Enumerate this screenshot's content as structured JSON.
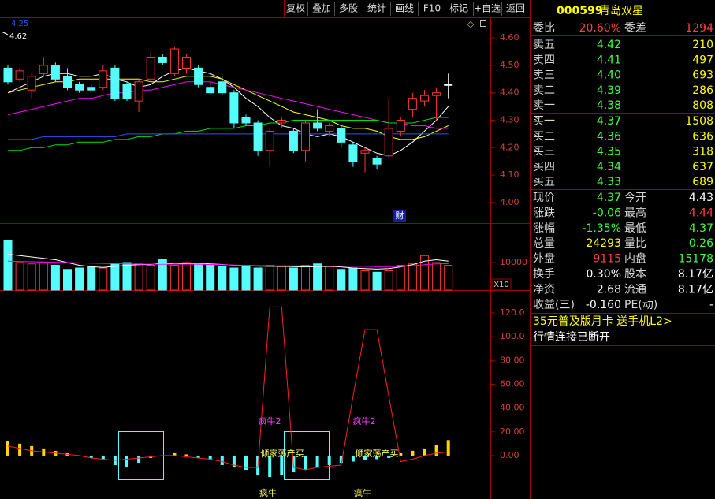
{
  "toolbar": [
    "复权",
    "叠加",
    "多股",
    "统计",
    "画线",
    "F10",
    "标记",
    "+自选",
    "返回"
  ],
  "quote": {
    "code": "000599",
    "name": "青岛双星",
    "ratio": [
      "委比",
      "20.60%",
      "委差",
      "1294"
    ],
    "asks": [
      [
        "卖五",
        "4.42",
        "210"
      ],
      [
        "卖四",
        "4.41",
        "497"
      ],
      [
        "卖三",
        "4.40",
        "693"
      ],
      [
        "卖二",
        "4.39",
        "286"
      ],
      [
        "卖一",
        "4.38",
        "808"
      ]
    ],
    "bids": [
      [
        "买一",
        "4.37",
        "1508"
      ],
      [
        "买二",
        "4.36",
        "636"
      ],
      [
        "买三",
        "4.35",
        "318"
      ],
      [
        "买四",
        "4.34",
        "637"
      ],
      [
        "买五",
        "4.33",
        "689"
      ]
    ],
    "stats": [
      [
        "现价",
        "4.37",
        "今开",
        "4.43"
      ],
      [
        "涨跌",
        "-0.06",
        "最高",
        "4.44"
      ],
      [
        "涨幅",
        "-1.35%",
        "最低",
        "4.37"
      ],
      [
        "总量",
        "24293",
        "量比",
        "0.26"
      ],
      [
        "外盘",
        "9115",
        "内盘",
        "15178"
      ],
      [
        "换手",
        "0.30%",
        "股本",
        "8.17亿"
      ],
      [
        "净资",
        "2.68",
        "流通",
        "8.17亿"
      ],
      [
        "收益(三)",
        "-0.160",
        "PE(动)",
        "-"
      ]
    ],
    "promo": "35元普及版月卡 送手机L2>",
    "status": "行情连接已断开"
  },
  "chart_data": [
    {
      "type": "candlestick",
      "open": [
        4.49,
        4.45,
        4.41,
        4.47,
        4.5,
        4.46,
        4.43,
        4.42,
        4.42,
        4.49,
        4.43,
        4.37,
        4.45,
        4.53,
        4.47,
        4.49,
        4.49,
        4.42,
        4.44,
        4.4,
        4.31,
        4.29,
        4.19,
        4.29,
        4.26,
        4.19,
        4.29,
        4.26,
        4.27,
        4.21,
        4.18,
        4.16,
        4.17,
        4.26,
        4.34,
        4.37,
        4.39,
        4.43
      ],
      "high": [
        4.5,
        4.49,
        4.47,
        4.53,
        4.51,
        4.49,
        4.44,
        4.43,
        4.5,
        4.5,
        4.44,
        4.45,
        4.55,
        4.54,
        4.57,
        4.54,
        4.5,
        4.44,
        4.46,
        4.41,
        4.32,
        4.3,
        4.27,
        4.31,
        4.27,
        4.3,
        4.34,
        4.29,
        4.28,
        4.22,
        4.2,
        4.17,
        4.38,
        4.31,
        4.4,
        4.41,
        4.42,
        4.47
      ],
      "low": [
        4.43,
        4.44,
        4.38,
        4.46,
        4.44,
        4.41,
        4.4,
        4.41,
        4.41,
        4.37,
        4.37,
        4.33,
        4.44,
        4.5,
        4.46,
        4.47,
        4.42,
        4.39,
        4.39,
        4.27,
        4.28,
        4.17,
        4.13,
        4.27,
        4.18,
        4.15,
        4.26,
        4.24,
        4.2,
        4.13,
        4.11,
        4.12,
        4.16,
        4.24,
        4.31,
        4.35,
        4.3,
        4.38
      ],
      "close": [
        4.44,
        4.48,
        4.46,
        4.5,
        4.45,
        4.42,
        4.41,
        4.41,
        4.48,
        4.38,
        4.38,
        4.44,
        4.53,
        4.51,
        4.56,
        4.53,
        4.43,
        4.4,
        4.4,
        4.29,
        4.29,
        4.19,
        4.26,
        4.3,
        4.19,
        4.29,
        4.27,
        4.28,
        4.22,
        4.15,
        4.19,
        4.14,
        4.27,
        4.3,
        4.38,
        4.39,
        4.4,
        4.43
      ],
      "up_color": "#ff3232",
      "down_color": "#54fcfc",
      "flat_color": "#ffffff",
      "lines": [
        {
          "color": "#ffffff",
          "values": [
            4.4,
            4.42,
            4.44,
            4.46,
            4.47,
            4.47,
            4.46,
            4.46,
            4.47,
            4.45,
            4.44,
            4.42,
            4.43,
            4.46,
            4.48,
            4.49,
            4.48,
            4.47,
            4.45,
            4.42,
            4.38,
            4.35,
            4.31,
            4.28,
            4.27,
            4.25,
            4.24,
            4.25,
            4.24,
            4.22,
            4.2,
            4.18,
            4.17,
            4.19,
            4.22,
            4.26,
            4.3,
            4.35
          ]
        },
        {
          "color": "#ffff00",
          "values": [
            4.4,
            4.41,
            4.42,
            4.43,
            4.44,
            4.44,
            4.45,
            4.45,
            4.45,
            4.45,
            4.45,
            4.45,
            4.44,
            4.44,
            4.45,
            4.46,
            4.46,
            4.46,
            4.45,
            4.43,
            4.41,
            4.39,
            4.37,
            4.35,
            4.33,
            4.32,
            4.31,
            4.3,
            4.28,
            4.27,
            4.27,
            4.26,
            4.24,
            4.23,
            4.23,
            4.24,
            4.26,
            4.28
          ]
        },
        {
          "color": "#ff00ff",
          "values": [
            4.32,
            4.33,
            4.34,
            4.35,
            4.36,
            4.37,
            4.38,
            4.38,
            4.39,
            4.4,
            4.4,
            4.41,
            4.41,
            4.42,
            4.43,
            4.44,
            4.44,
            4.44,
            4.43,
            4.42,
            4.41,
            4.4,
            4.39,
            4.38,
            4.37,
            4.36,
            4.35,
            4.34,
            4.33,
            4.32,
            4.31,
            4.3,
            4.29,
            4.29,
            4.28,
            4.28,
            4.27,
            4.27
          ]
        },
        {
          "color": "#00e000",
          "values": [
            4.19,
            4.19,
            4.2,
            4.2,
            4.21,
            4.21,
            4.22,
            4.22,
            4.22,
            4.23,
            4.23,
            4.24,
            4.24,
            4.25,
            4.25,
            4.26,
            4.26,
            4.27,
            4.27,
            4.27,
            4.28,
            4.28,
            4.29,
            4.29,
            4.3,
            4.3,
            4.3,
            4.3,
            4.3,
            4.3,
            4.3,
            4.3,
            4.29,
            4.29,
            4.29,
            4.3,
            4.31,
            4.31
          ]
        },
        {
          "color": "#3050ff",
          "values": [
            4.23,
            4.23,
            4.23,
            4.24,
            4.24,
            4.24,
            4.24,
            4.24,
            4.24,
            4.24,
            4.25,
            4.25,
            4.25,
            4.25,
            4.25,
            4.25,
            4.25,
            4.25,
            4.25,
            4.25,
            4.25,
            4.25,
            4.25,
            4.25,
            4.25,
            4.25,
            4.25,
            4.25,
            4.25,
            4.25,
            4.25,
            4.25,
            4.25,
            4.25,
            4.25,
            4.25,
            4.25,
            4.25
          ]
        }
      ],
      "ylim": [
        3.925,
        4.675
      ],
      "yticks": [
        {
          "value": 4.6,
          "label": "4.60"
        },
        {
          "value": 4.5,
          "label": "4.50"
        },
        {
          "value": 4.4,
          "label": "4.40"
        },
        {
          "value": 4.3,
          "label": "4.30"
        },
        {
          "value": 4.2,
          "label": "4.20"
        },
        {
          "value": 4.1,
          "label": "4.10"
        },
        {
          "value": 4.0,
          "label": "4.00"
        }
      ],
      "labels": [
        "4.25",
        "4.62"
      ],
      "annotations": [
        "财"
      ]
    },
    {
      "type": "volume",
      "values": [
        18000,
        10000,
        9500,
        10000,
        9000,
        7500,
        8000,
        8500,
        8000,
        9500,
        10000,
        9500,
        9000,
        11000,
        9000,
        10000,
        9500,
        9000,
        8500,
        8000,
        9000,
        8000,
        9000,
        8500,
        8000,
        9000,
        9500,
        8500,
        7500,
        8000,
        7000,
        6500,
        7000,
        9000,
        9500,
        12500,
        10000,
        9000
      ],
      "lines": [
        {
          "color": "#ffffff",
          "values": [
            13000,
            12500,
            12000,
            11500,
            11000,
            10000,
            9000,
            8500,
            8200,
            8600,
            9000,
            9200,
            9300,
            9800,
            9500,
            9600,
            9800,
            9500,
            9300,
            9000,
            8800,
            8700,
            8600,
            8600,
            8500,
            8400,
            8500,
            8600,
            8400,
            8000,
            7800,
            7600,
            7800,
            8400,
            9200,
            10500,
            11000,
            10500
          ]
        },
        {
          "color": "#ff00ff",
          "values": [
            10500,
            10400,
            10300,
            10200,
            10100,
            10000,
            9900,
            9800,
            9700,
            9600,
            9500,
            9400,
            9400,
            9400,
            9400,
            9400,
            9400,
            9300,
            9200,
            9100,
            9000,
            8900,
            8800,
            8800,
            8800,
            8800,
            8800,
            8700,
            8700,
            8600,
            8600,
            8500,
            8500,
            8600,
            8800,
            9200,
            9500,
            9600
          ]
        }
      ],
      "ylim": [
        0,
        24300
      ],
      "yticks": [
        10000
      ],
      "unit_label": "X10"
    },
    {
      "type": "indicator",
      "values": [
        12,
        10,
        8,
        6,
        4,
        2,
        0,
        -2,
        -4,
        -8,
        -10,
        -6,
        -2,
        0,
        2,
        1,
        -2,
        -4,
        -8,
        -10,
        -12,
        -16,
        -18,
        -16,
        -14,
        -12,
        -10,
        -8,
        -6,
        -5,
        -4,
        -3,
        -2,
        2,
        4,
        6,
        9,
        13
      ],
      "positive_color": "#ffd800",
      "negative_color": "#54fcfc",
      "line": {
        "color": "#ff2020",
        "values": [
          8,
          6,
          4,
          3,
          2,
          1,
          0,
          -2,
          -3,
          -4,
          -3,
          -2,
          -1,
          0,
          0,
          -1,
          -2,
          -3,
          -5,
          -8,
          -10,
          -10,
          125,
          125,
          -10,
          -12,
          -10,
          -9,
          -8,
          50,
          106,
          106,
          50,
          -5,
          -3,
          0,
          2,
          3
        ]
      },
      "ylim": [
        -36.5,
        139.2
      ],
      "yticks": [
        {
          "value": 0,
          "label": "0.00"
        },
        {
          "value": 20,
          "label": "20.00"
        },
        {
          "value": 40,
          "label": "40.00"
        },
        {
          "value": 60,
          "label": "60.00"
        },
        {
          "value": 80,
          "label": "80.00"
        },
        {
          "value": 100,
          "label": "100.0"
        },
        {
          "value": 120,
          "label": "120.0"
        }
      ],
      "annotations": [
        "疯牛2",
        "疯牛2",
        "倾家荡产买",
        "倾家荡产买",
        "疯牛",
        "疯牛"
      ]
    }
  ]
}
